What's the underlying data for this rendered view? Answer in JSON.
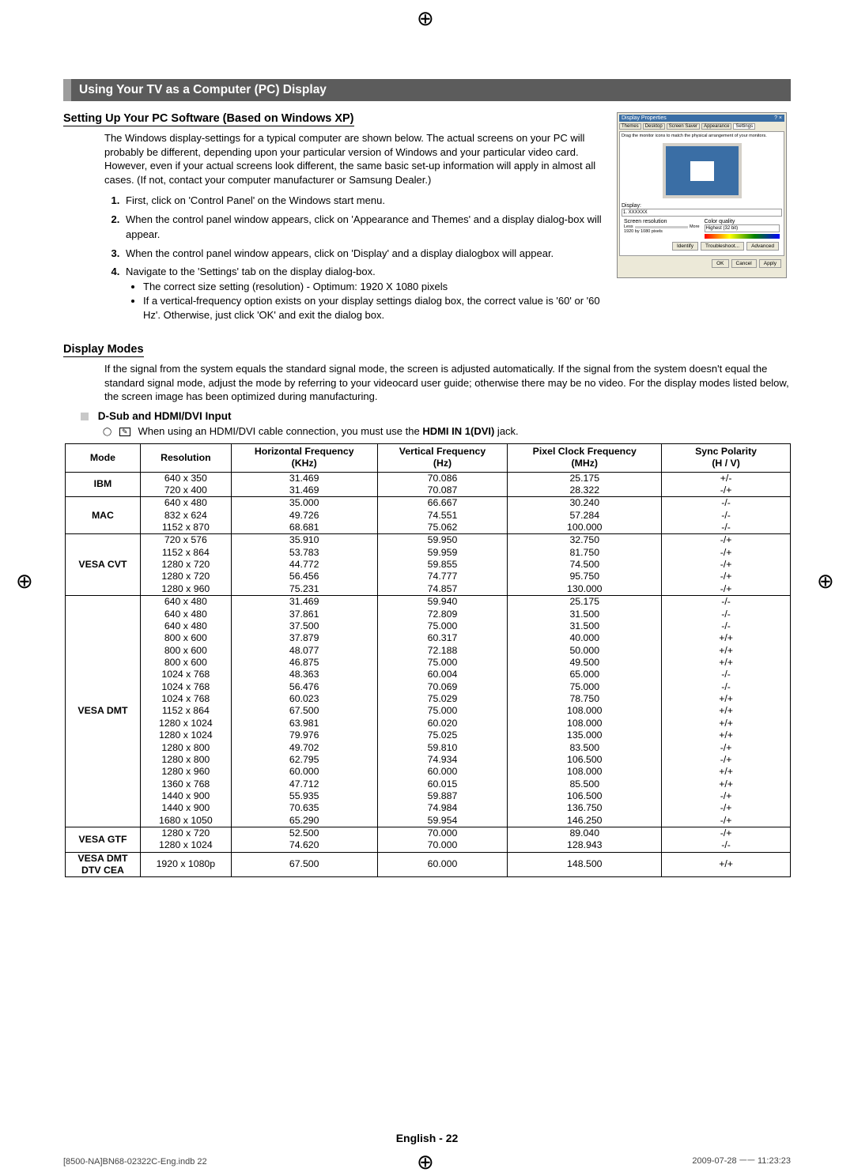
{
  "reg_marks": {
    "glyph": "⊕"
  },
  "section_title": "Using Your TV as a Computer (PC) Display",
  "setup": {
    "heading": "Setting Up Your PC Software (Based on Windows XP)",
    "intro": "The Windows display-settings for a typical computer are shown below. The actual screens on your PC will probably be different, depending upon your particular version of Windows and your particular video card. However, even if your actual screens look different, the same basic set-up information will apply in almost all cases. (If not, contact your computer manufacturer or Samsung Dealer.)",
    "steps": [
      "First, click on 'Control Panel' on the Windows start menu.",
      "When the control panel window appears, click on 'Appearance and Themes' and a display dialog-box will appear.",
      "When the control panel window appears, click on 'Display' and a display dialogbox will appear.",
      "Navigate to the 'Settings' tab on the display dialog-box."
    ],
    "bullets": [
      "The correct size setting (resolution) - Optimum: 1920 X 1080 pixels",
      "If a vertical-frequency option exists on your display settings dialog box, the correct value is '60' or '60 Hz'. Otherwise, just click 'OK' and exit the dialog box."
    ],
    "win": {
      "title": "Display Properties",
      "tabs": [
        "Themes",
        "Desktop",
        "Screen Saver",
        "Appearance",
        "Settings"
      ],
      "hint": "Drag the monitor icons to match the physical arrangement of your monitors.",
      "display_label": "Display:",
      "display_value": "1. XXXXXX",
      "res_label": "Screen resolution",
      "res_less": "Less",
      "res_more": "More",
      "res_value": "1920 by 1080 pixels",
      "cq_label": "Color quality",
      "cq_value": "Highest (32 bit)",
      "btns_row1": [
        "Identify",
        "Troubleshoot...",
        "Advanced"
      ],
      "btns_row2": [
        "OK",
        "Cancel",
        "Apply"
      ]
    }
  },
  "modes": {
    "heading": "Display Modes",
    "intro": "If the signal from the system equals the standard signal mode, the screen is adjusted automatically. If the signal from the system doesn't equal the standard signal mode, adjust the mode by referring to your videocard user guide; otherwise there may be no video. For the display modes listed below, the screen image has been optimized during manufacturing.",
    "dsub_label": "D-Sub and HDMI/DVI Input",
    "note_prefix": "When using an HDMI/DVI cable connection, you must use the ",
    "note_bold": "HDMI IN 1(DVI)",
    "note_suffix": " jack.",
    "columns": [
      {
        "t1": "Mode",
        "t2": ""
      },
      {
        "t1": "Resolution",
        "t2": ""
      },
      {
        "t1": "Horizontal Frequency",
        "t2": "(KHz)"
      },
      {
        "t1": "Vertical Frequency",
        "t2": "(Hz)"
      },
      {
        "t1": "Pixel Clock Frequency",
        "t2": "(MHz)"
      },
      {
        "t1": "Sync Polarity",
        "t2": "(H / V)"
      }
    ],
    "groups": [
      {
        "mode": "IBM",
        "rows": [
          [
            "640 x 350",
            "31.469",
            "70.086",
            "25.175",
            "+/-"
          ],
          [
            "720 x 400",
            "31.469",
            "70.087",
            "28.322",
            "-/+"
          ]
        ]
      },
      {
        "mode": "MAC",
        "rows": [
          [
            "640 x 480",
            "35.000",
            "66.667",
            "30.240",
            "-/-"
          ],
          [
            "832 x 624",
            "49.726",
            "74.551",
            "57.284",
            "-/-"
          ],
          [
            "1152 x 870",
            "68.681",
            "75.062",
            "100.000",
            "-/-"
          ]
        ]
      },
      {
        "mode": "VESA CVT",
        "rows": [
          [
            "720 x 576",
            "35.910",
            "59.950",
            "32.750",
            "-/+"
          ],
          [
            "1152 x 864",
            "53.783",
            "59.959",
            "81.750",
            "-/+"
          ],
          [
            "1280 x 720",
            "44.772",
            "59.855",
            "74.500",
            "-/+"
          ],
          [
            "1280 x 720",
            "56.456",
            "74.777",
            "95.750",
            "-/+"
          ],
          [
            "1280 x 960",
            "75.231",
            "74.857",
            "130.000",
            "-/+"
          ]
        ]
      },
      {
        "mode": "VESA DMT",
        "rows": [
          [
            "640 x 480",
            "31.469",
            "59.940",
            "25.175",
            "-/-"
          ],
          [
            "640 x 480",
            "37.861",
            "72.809",
            "31.500",
            "-/-"
          ],
          [
            "640 x 480",
            "37.500",
            "75.000",
            "31.500",
            "-/-"
          ],
          [
            "800 x 600",
            "37.879",
            "60.317",
            "40.000",
            "+/+"
          ],
          [
            "800 x 600",
            "48.077",
            "72.188",
            "50.000",
            "+/+"
          ],
          [
            "800 x 600",
            "46.875",
            "75.000",
            "49.500",
            "+/+"
          ],
          [
            "1024 x 768",
            "48.363",
            "60.004",
            "65.000",
            "-/-"
          ],
          [
            "1024 x 768",
            "56.476",
            "70.069",
            "75.000",
            "-/-"
          ],
          [
            "1024 x 768",
            "60.023",
            "75.029",
            "78.750",
            "+/+"
          ],
          [
            "1152 x 864",
            "67.500",
            "75.000",
            "108.000",
            "+/+"
          ],
          [
            "1280 x 1024",
            "63.981",
            "60.020",
            "108.000",
            "+/+"
          ],
          [
            "1280 x 1024",
            "79.976",
            "75.025",
            "135.000",
            "+/+"
          ],
          [
            "1280 x 800",
            "49.702",
            "59.810",
            "83.500",
            "-/+"
          ],
          [
            "1280 x 800",
            "62.795",
            "74.934",
            "106.500",
            "-/+"
          ],
          [
            "1280 x 960",
            "60.000",
            "60.000",
            "108.000",
            "+/+"
          ],
          [
            "1360 x 768",
            "47.712",
            "60.015",
            "85.500",
            "+/+"
          ],
          [
            "1440 x 900",
            "55.935",
            "59.887",
            "106.500",
            "-/+"
          ],
          [
            "1440 x 900",
            "70.635",
            "74.984",
            "136.750",
            "-/+"
          ],
          [
            "1680 x 1050",
            "65.290",
            "59.954",
            "146.250",
            "-/+"
          ]
        ]
      },
      {
        "mode": "VESA GTF",
        "rows": [
          [
            "1280 x 720",
            "52.500",
            "70.000",
            "89.040",
            "-/+"
          ],
          [
            "1280 x 1024",
            "74.620",
            "70.000",
            "128.943",
            "-/-"
          ]
        ]
      },
      {
        "mode": "VESA DMT / DTV CEA",
        "rows": [
          [
            "1920 x 1080p",
            "67.500",
            "60.000",
            "148.500",
            "+/+"
          ]
        ]
      }
    ]
  },
  "footer": {
    "center": "English - 22",
    "left": "[8500-NA]BN68-02322C-Eng.indb   22",
    "right": "2009-07-28   ㅡㅡ 11:23:23"
  }
}
